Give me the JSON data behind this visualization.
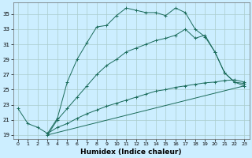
{
  "xlabel": "Humidex (Indice chaleur)",
  "background_color": "#cceeff",
  "grid_color": "#aacccc",
  "line_color": "#1a6b5a",
  "xlim": [
    -0.5,
    23.5
  ],
  "ylim": [
    18.5,
    36.5
  ],
  "yticks": [
    19,
    21,
    23,
    25,
    27,
    29,
    31,
    33,
    35
  ],
  "xticks": [
    0,
    1,
    2,
    3,
    4,
    5,
    6,
    7,
    8,
    9,
    10,
    11,
    12,
    13,
    14,
    15,
    16,
    17,
    18,
    19,
    20,
    21,
    22,
    23
  ],
  "series": [
    {
      "x": [
        0,
        1,
        2,
        3,
        4,
        5,
        6,
        7,
        8,
        9,
        10,
        11,
        12,
        13,
        14,
        15,
        16,
        17,
        18,
        19,
        20,
        21,
        22,
        23
      ],
      "y": [
        22.5,
        20.5,
        20.0,
        19.2,
        21.2,
        26.0,
        29.0,
        31.2,
        33.3,
        33.5,
        34.8,
        35.8,
        35.5,
        35.2,
        35.2,
        34.8,
        35.8,
        35.2,
        33.0,
        32.0,
        30.0,
        27.2,
        26.0,
        25.5
      ],
      "has_markers": true
    },
    {
      "x": [
        3,
        4,
        5,
        6,
        7,
        8,
        9,
        10,
        11,
        12,
        13,
        14,
        15,
        16,
        17,
        18,
        19,
        20,
        21,
        22,
        23
      ],
      "y": [
        19.0,
        21.0,
        22.5,
        24.0,
        25.5,
        27.0,
        28.2,
        29.0,
        30.0,
        30.5,
        31.0,
        31.5,
        31.8,
        32.2,
        33.0,
        31.8,
        32.2,
        30.0,
        27.2,
        26.0,
        25.8
      ],
      "has_markers": true
    },
    {
      "x": [
        3,
        23
      ],
      "y": [
        19.0,
        25.5
      ],
      "has_markers": false
    },
    {
      "x": [
        3,
        4,
        5,
        6,
        7,
        8,
        9,
        10,
        11,
        12,
        13,
        14,
        15,
        16,
        17,
        18,
        19,
        20,
        21,
        22,
        23
      ],
      "y": [
        19.2,
        20.0,
        20.5,
        21.2,
        21.8,
        22.3,
        22.8,
        23.2,
        23.6,
        24.0,
        24.4,
        24.8,
        25.0,
        25.3,
        25.5,
        25.7,
        25.9,
        26.0,
        26.2,
        26.3,
        26.0
      ],
      "has_markers": true
    }
  ]
}
